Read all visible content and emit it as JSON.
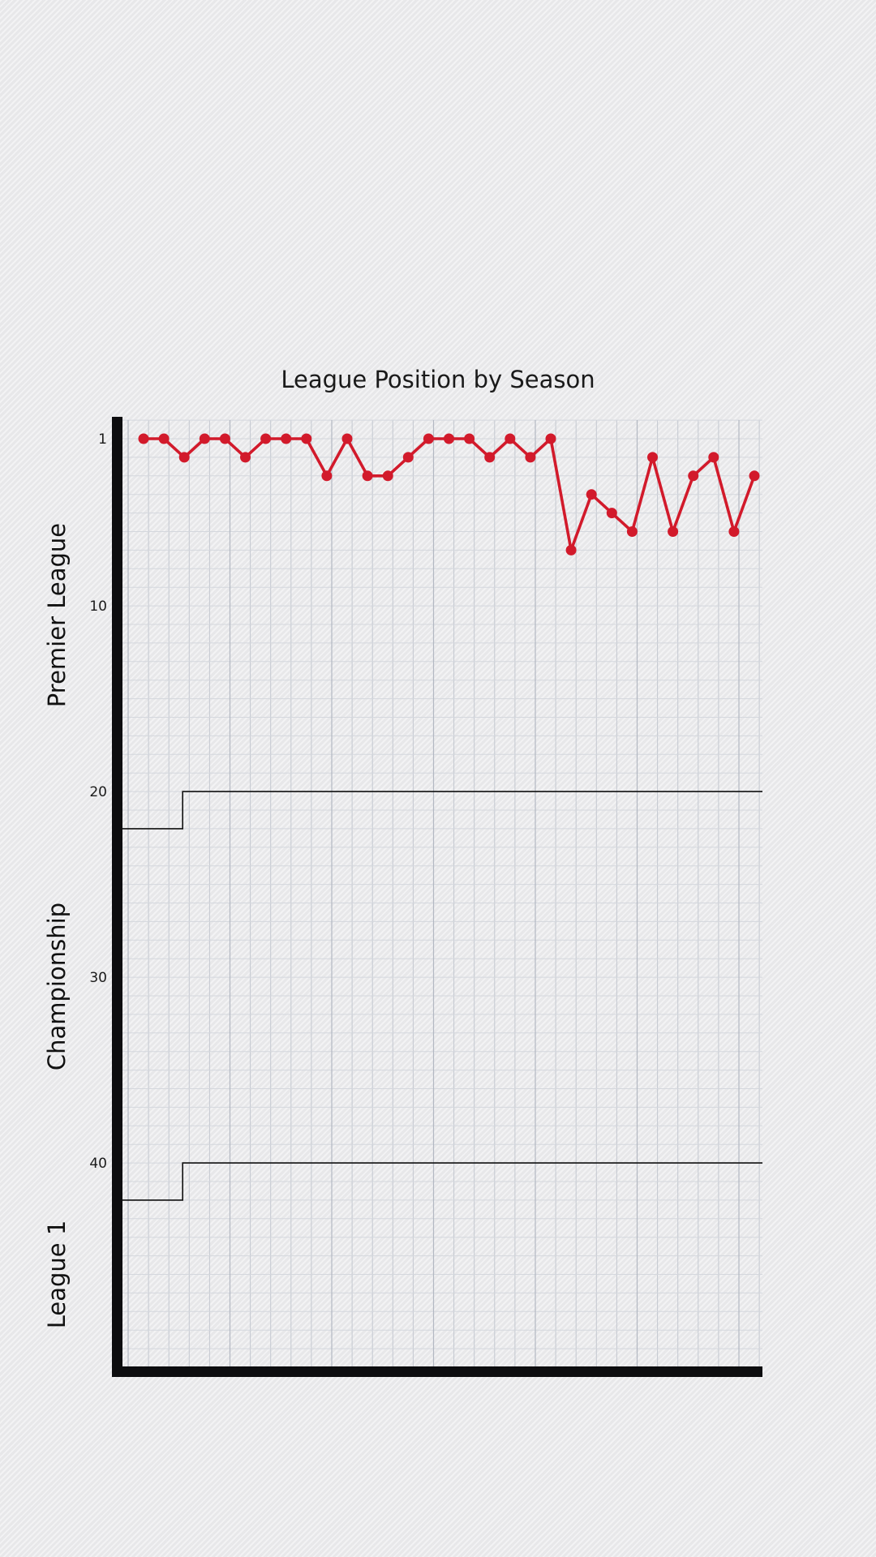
{
  "chart_data": {
    "type": "line",
    "title": "League Position by Season",
    "xlabel": "",
    "ylabel": "",
    "ylim": [
      1,
      51
    ],
    "yticks": [
      1,
      10,
      20,
      30,
      40
    ],
    "y_inverted": true,
    "grid": true,
    "series": [
      {
        "color": "#d21a2b",
        "values": [
          1,
          1,
          2,
          1,
          1,
          2,
          1,
          1,
          1,
          3,
          1,
          3,
          3,
          2,
          1,
          1,
          1,
          2,
          1,
          2,
          1,
          7,
          4,
          5,
          6,
          2,
          6,
          3,
          2,
          6,
          3
        ]
      }
    ],
    "division_bands": [
      {
        "label": "Premier League",
        "from": 1,
        "to": 20
      },
      {
        "label": "Championship",
        "from": 21,
        "to": 40
      },
      {
        "label": "League 1",
        "from": 41,
        "to": 51
      }
    ],
    "boundaries": [
      {
        "start_season_index": 0,
        "before": 22,
        "after": 20,
        "step_at_index": 2
      },
      {
        "start_season_index": 0,
        "before": 42,
        "after": 40,
        "step_at_index": 2
      }
    ]
  }
}
